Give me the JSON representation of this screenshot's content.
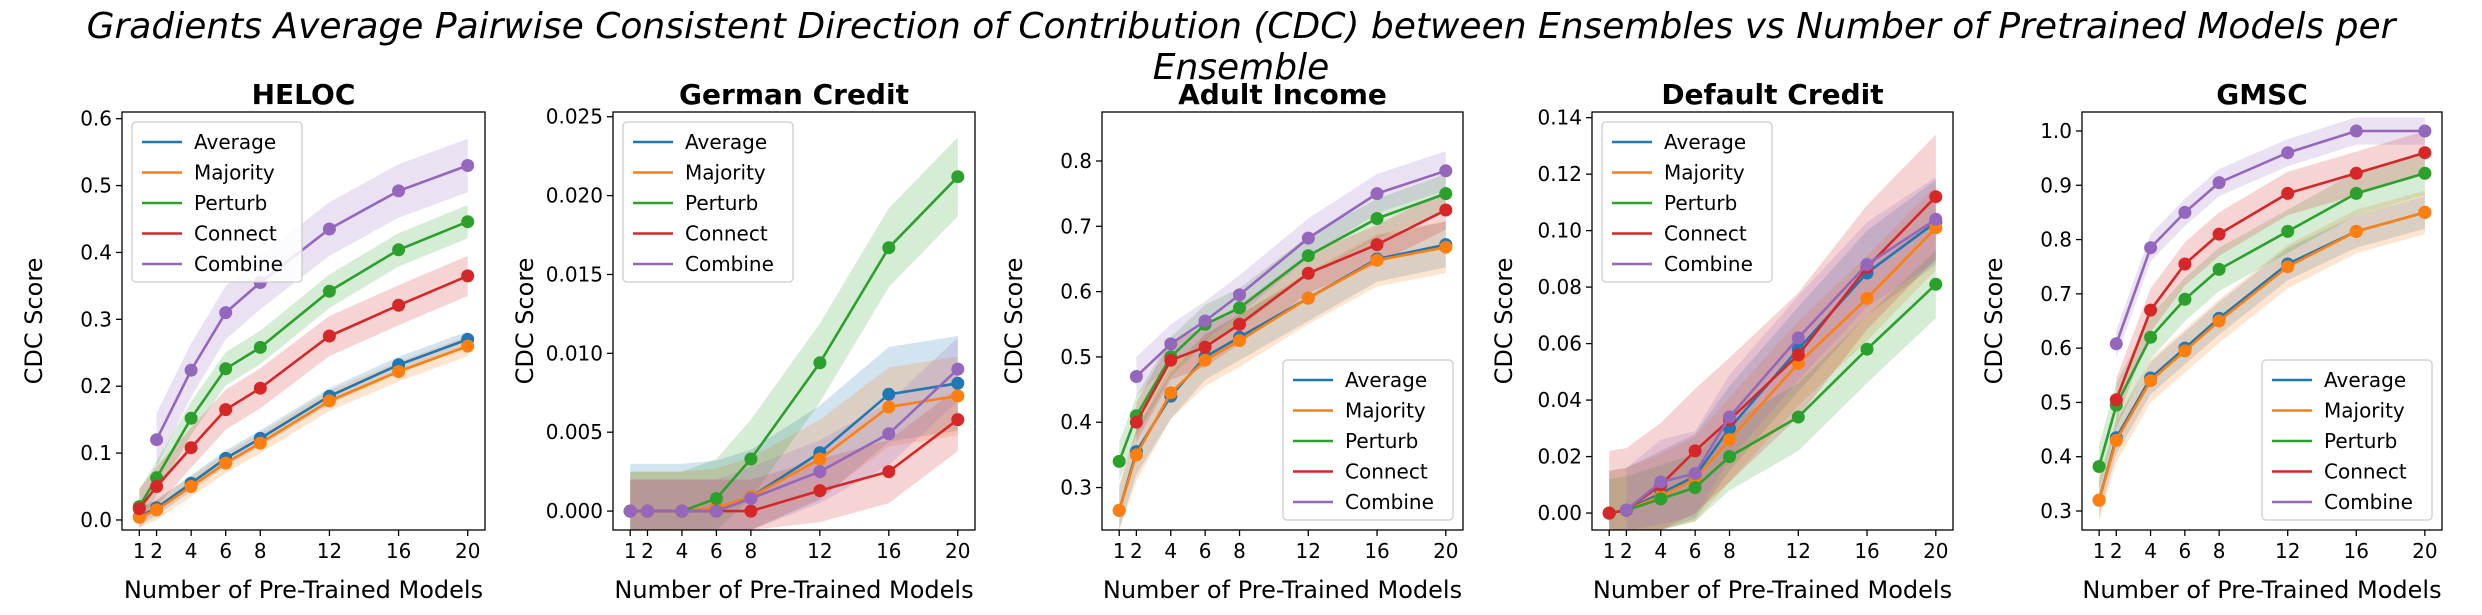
{
  "figure": {
    "suptitle": "Gradients Average Pairwise Consistent Direction of Contribution (CDC) between Ensembles vs Number of Pretrained Models per Ensemble"
  },
  "series_colors": {
    "Average": "#1f77b4",
    "Majority": "#ff7f0e",
    "Perturb": "#2ca02c",
    "Connect": "#d62728",
    "Combine": "#9467bd"
  },
  "chart_data": [
    {
      "type": "line",
      "title": "HELOC",
      "xlabel": "Number of Pre-Trained Models",
      "ylabel": "CDC Score",
      "x": [
        1,
        2,
        4,
        6,
        8,
        12,
        16,
        20
      ],
      "xticks": [
        1,
        2,
        4,
        6,
        8,
        12,
        16,
        20
      ],
      "xlim": [
        0,
        21
      ],
      "ylim": [
        -0.015,
        0.61
      ],
      "yticks": [
        "0.0",
        "0.1",
        "0.2",
        "0.3",
        "0.4",
        "0.5",
        "0.6"
      ],
      "ytick_values": [
        0,
        0.1,
        0.2,
        0.3,
        0.4,
        0.5,
        0.6
      ],
      "legend": "top-left",
      "grid": false,
      "series": [
        {
          "name": "Average",
          "points": [
            [
              1,
              0.005
            ],
            [
              2,
              0.018
            ],
            [
              4,
              0.055
            ],
            [
              6,
              0.092
            ],
            [
              8,
              0.122
            ],
            [
              12,
              0.185
            ],
            [
              16,
              0.232
            ],
            [
              20,
              0.27
            ]
          ],
          "band": 0.012
        },
        {
          "name": "Majority",
          "points": [
            [
              1,
              0.004
            ],
            [
              2,
              0.015
            ],
            [
              4,
              0.05
            ],
            [
              6,
              0.085
            ],
            [
              8,
              0.115
            ],
            [
              12,
              0.178
            ],
            [
              16,
              0.222
            ],
            [
              20,
              0.26
            ]
          ],
          "band": 0.015
        },
        {
          "name": "Perturb",
          "points": [
            [
              1,
              0.02
            ],
            [
              2,
              0.063
            ],
            [
              4,
              0.152
            ],
            [
              6,
              0.226
            ],
            [
              8,
              0.258
            ],
            [
              12,
              0.342
            ],
            [
              16,
              0.404
            ],
            [
              20,
              0.446
            ]
          ],
          "band": 0.025
        },
        {
          "name": "Connect",
          "points": [
            [
              1,
              0.017
            ],
            [
              2,
              0.05
            ],
            [
              4,
              0.108
            ],
            [
              6,
              0.165
            ],
            [
              8,
              0.197
            ],
            [
              12,
              0.275
            ],
            [
              16,
              0.321
            ],
            [
              20,
              0.365
            ]
          ],
          "band": 0.03
        },
        {
          "name": "Combine",
          "points": [
            [
              2,
              0.12
            ],
            [
              4,
              0.224
            ],
            [
              6,
              0.31
            ],
            [
              8,
              0.355
            ],
            [
              12,
              0.435
            ],
            [
              16,
              0.492
            ],
            [
              20,
              0.53
            ]
          ],
          "band": 0.04
        }
      ]
    },
    {
      "type": "line",
      "title": "German Credit",
      "xlabel": "Number of Pre-Trained Models",
      "ylabel": "CDC Score",
      "x": [
        1,
        2,
        4,
        6,
        8,
        12,
        16,
        20
      ],
      "xticks": [
        1,
        2,
        4,
        6,
        8,
        12,
        16,
        20
      ],
      "xlim": [
        0,
        21
      ],
      "ylim": [
        -0.0012,
        0.0253
      ],
      "yticks": [
        "0.000",
        "0.005",
        "0.010",
        "0.015",
        "0.020",
        "0.025"
      ],
      "ytick_values": [
        0,
        0.005,
        0.01,
        0.015,
        0.02,
        0.025
      ],
      "legend": "top-left",
      "grid": false,
      "series": [
        {
          "name": "Average",
          "points": [
            [
              1,
              0
            ],
            [
              2,
              0
            ],
            [
              4,
              0
            ],
            [
              6,
              0.0002
            ],
            [
              8,
              0.0009
            ],
            [
              12,
              0.0037
            ],
            [
              16,
              0.0074
            ],
            [
              20,
              0.0081
            ]
          ],
          "band": 0.003
        },
        {
          "name": "Majority",
          "points": [
            [
              1,
              0
            ],
            [
              2,
              0
            ],
            [
              4,
              0
            ],
            [
              6,
              0.0002
            ],
            [
              8,
              0.0009
            ],
            [
              12,
              0.0033
            ],
            [
              16,
              0.0066
            ],
            [
              20,
              0.0073
            ]
          ],
          "band": 0.0025
        },
        {
          "name": "Perturb",
          "points": [
            [
              1,
              0
            ],
            [
              2,
              0
            ],
            [
              4,
              0
            ],
            [
              6,
              0.0008
            ],
            [
              8,
              0.0033
            ],
            [
              12,
              0.0094
            ],
            [
              16,
              0.0167
            ],
            [
              20,
              0.0212
            ]
          ],
          "band": 0.0025
        },
        {
          "name": "Connect",
          "points": [
            [
              1,
              0
            ],
            [
              2,
              0
            ],
            [
              4,
              0
            ],
            [
              6,
              0
            ],
            [
              8,
              0
            ],
            [
              12,
              0.0013
            ],
            [
              16,
              0.0025
            ],
            [
              20,
              0.0058
            ]
          ],
          "band": 0.002
        },
        {
          "name": "Combine",
          "points": [
            [
              1,
              0
            ],
            [
              2,
              0
            ],
            [
              4,
              0
            ],
            [
              6,
              0
            ],
            [
              8,
              0.0008
            ],
            [
              12,
              0.0025
            ],
            [
              16,
              0.0049
            ],
            [
              20,
              0.009
            ]
          ],
          "band": 0.002
        }
      ]
    },
    {
      "type": "line",
      "title": "Adult Income",
      "xlabel": "Number of Pre-Trained Models",
      "ylabel": "CDC Score",
      "x": [
        1,
        2,
        4,
        6,
        8,
        12,
        16,
        20
      ],
      "xticks": [
        1,
        2,
        4,
        6,
        8,
        12,
        16,
        20
      ],
      "xlim": [
        0,
        21
      ],
      "ylim": [
        0.235,
        0.875
      ],
      "yticks": [
        "0.3",
        "0.4",
        "0.5",
        "0.6",
        "0.7",
        "0.8"
      ],
      "ytick_values": [
        0.3,
        0.4,
        0.5,
        0.6,
        0.7,
        0.8
      ],
      "legend": "bottom-right",
      "grid": false,
      "series": [
        {
          "name": "Average",
          "points": [
            [
              1,
              0.265
            ],
            [
              2,
              0.355
            ],
            [
              4,
              0.44
            ],
            [
              6,
              0.5
            ],
            [
              8,
              0.53
            ],
            [
              12,
              0.59
            ],
            [
              16,
              0.65
            ],
            [
              20,
              0.672
            ]
          ],
          "band": 0.035
        },
        {
          "name": "Majority",
          "points": [
            [
              1,
              0.265
            ],
            [
              2,
              0.35
            ],
            [
              4,
              0.445
            ],
            [
              6,
              0.495
            ],
            [
              8,
              0.525
            ],
            [
              12,
              0.59
            ],
            [
              16,
              0.648
            ],
            [
              20,
              0.668
            ]
          ],
          "band": 0.04
        },
        {
          "name": "Perturb",
          "points": [
            [
              1,
              0.34
            ],
            [
              2,
              0.41
            ],
            [
              4,
              0.5
            ],
            [
              6,
              0.55
            ],
            [
              8,
              0.575
            ],
            [
              12,
              0.655
            ],
            [
              16,
              0.712
            ],
            [
              20,
              0.75
            ]
          ],
          "band": 0.03
        },
        {
          "name": "Connect",
          "points": [
            [
              2,
              0.4
            ],
            [
              4,
              0.495
            ],
            [
              6,
              0.515
            ],
            [
              8,
              0.55
            ],
            [
              12,
              0.628
            ],
            [
              16,
              0.672
            ],
            [
              20,
              0.725
            ]
          ],
          "band": 0.03
        },
        {
          "name": "Combine",
          "points": [
            [
              2,
              0.47
            ],
            [
              4,
              0.52
            ],
            [
              6,
              0.555
            ],
            [
              8,
              0.595
            ],
            [
              12,
              0.682
            ],
            [
              16,
              0.75
            ],
            [
              20,
              0.785
            ]
          ],
          "band": 0.03
        }
      ]
    },
    {
      "type": "line",
      "title": "Default Credit",
      "xlabel": "Number of Pre-Trained Models",
      "ylabel": "CDC Score",
      "x": [
        1,
        2,
        4,
        6,
        8,
        12,
        16,
        20
      ],
      "xticks": [
        1,
        2,
        4,
        6,
        8,
        12,
        16,
        20
      ],
      "xlim": [
        0,
        21
      ],
      "ylim": [
        -0.006,
        0.142
      ],
      "yticks": [
        "0.00",
        "0.02",
        "0.04",
        "0.06",
        "0.08",
        "0.10",
        "0.12",
        "0.14"
      ],
      "ytick_values": [
        0,
        0.02,
        0.04,
        0.06,
        0.08,
        0.1,
        0.12,
        0.14
      ],
      "legend": "top-left",
      "grid": false,
      "series": [
        {
          "name": "Average",
          "points": [
            [
              1,
              0
            ],
            [
              2,
              0.001
            ],
            [
              4,
              0.007
            ],
            [
              6,
              0.013
            ],
            [
              8,
              0.03
            ],
            [
              12,
              0.058
            ],
            [
              16,
              0.085
            ],
            [
              20,
              0.103
            ]
          ],
          "band": 0.015
        },
        {
          "name": "Majority",
          "points": [
            [
              1,
              0
            ],
            [
              2,
              0.001
            ],
            [
              4,
              0.006
            ],
            [
              6,
              0.012
            ],
            [
              8,
              0.026
            ],
            [
              12,
              0.053
            ],
            [
              16,
              0.076
            ],
            [
              20,
              0.101
            ]
          ],
          "band": 0.015
        },
        {
          "name": "Perturb",
          "points": [
            [
              1,
              0
            ],
            [
              2,
              0.001
            ],
            [
              4,
              0.005
            ],
            [
              6,
              0.009
            ],
            [
              8,
              0.02
            ],
            [
              12,
              0.034
            ],
            [
              16,
              0.058
            ],
            [
              20,
              0.081
            ]
          ],
          "band": 0.012
        },
        {
          "name": "Connect",
          "points": [
            [
              1,
              0
            ],
            [
              2,
              0.001
            ],
            [
              4,
              0.01
            ],
            [
              6,
              0.022
            ],
            [
              8,
              0.033
            ],
            [
              12,
              0.056
            ],
            [
              16,
              0.087
            ],
            [
              20,
              0.112
            ]
          ],
          "band": 0.022
        },
        {
          "name": "Combine",
          "points": [
            [
              2,
              0.001
            ],
            [
              4,
              0.011
            ],
            [
              6,
              0.014
            ],
            [
              8,
              0.034
            ],
            [
              12,
              0.062
            ],
            [
              16,
              0.088
            ],
            [
              20,
              0.104
            ]
          ],
          "band": 0.015
        }
      ]
    },
    {
      "type": "line",
      "title": "GMSC",
      "xlabel": "Number of Pre-Trained Models",
      "ylabel": "CDC Score",
      "x": [
        1,
        2,
        4,
        6,
        8,
        12,
        16,
        20
      ],
      "xticks": [
        1,
        2,
        4,
        6,
        8,
        12,
        16,
        20
      ],
      "xlim": [
        0,
        21
      ],
      "ylim": [
        0.265,
        1.035
      ],
      "yticks": [
        "0.3",
        "0.4",
        "0.5",
        "0.6",
        "0.7",
        "0.8",
        "0.9",
        "1.0"
      ],
      "ytick_values": [
        0.3,
        0.4,
        0.5,
        0.6,
        0.7,
        0.8,
        0.9,
        1.0
      ],
      "legend": "bottom-right",
      "grid": false,
      "series": [
        {
          "name": "Average",
          "points": [
            [
              1,
              0.32
            ],
            [
              2,
              0.435
            ],
            [
              4,
              0.545
            ],
            [
              6,
              0.6
            ],
            [
              8,
              0.655
            ],
            [
              12,
              0.755
            ],
            [
              16,
              0.815
            ],
            [
              20,
              0.85
            ]
          ],
          "band": 0.03
        },
        {
          "name": "Majority",
          "points": [
            [
              1,
              0.32
            ],
            [
              2,
              0.43
            ],
            [
              4,
              0.54
            ],
            [
              6,
              0.595
            ],
            [
              8,
              0.65
            ],
            [
              12,
              0.75
            ],
            [
              16,
              0.815
            ],
            [
              20,
              0.85
            ]
          ],
          "band": 0.04
        },
        {
          "name": "Perturb",
          "points": [
            [
              1,
              0.382
            ],
            [
              2,
              0.495
            ],
            [
              4,
              0.62
            ],
            [
              6,
              0.69
            ],
            [
              8,
              0.745
            ],
            [
              12,
              0.815
            ],
            [
              16,
              0.885
            ],
            [
              20,
              0.922
            ]
          ],
          "band": 0.04
        },
        {
          "name": "Connect",
          "points": [
            [
              2,
              0.505
            ],
            [
              4,
              0.67
            ],
            [
              6,
              0.755
            ],
            [
              8,
              0.81
            ],
            [
              12,
              0.885
            ],
            [
              16,
              0.922
            ],
            [
              20,
              0.96
            ]
          ],
          "band": 0.04
        },
        {
          "name": "Combine",
          "points": [
            [
              2,
              0.608
            ],
            [
              4,
              0.785
            ],
            [
              6,
              0.85
            ],
            [
              8,
              0.905
            ],
            [
              12,
              0.96
            ],
            [
              16,
              1.0
            ],
            [
              20,
              1.0
            ]
          ],
          "band": 0.025
        }
      ]
    }
  ]
}
